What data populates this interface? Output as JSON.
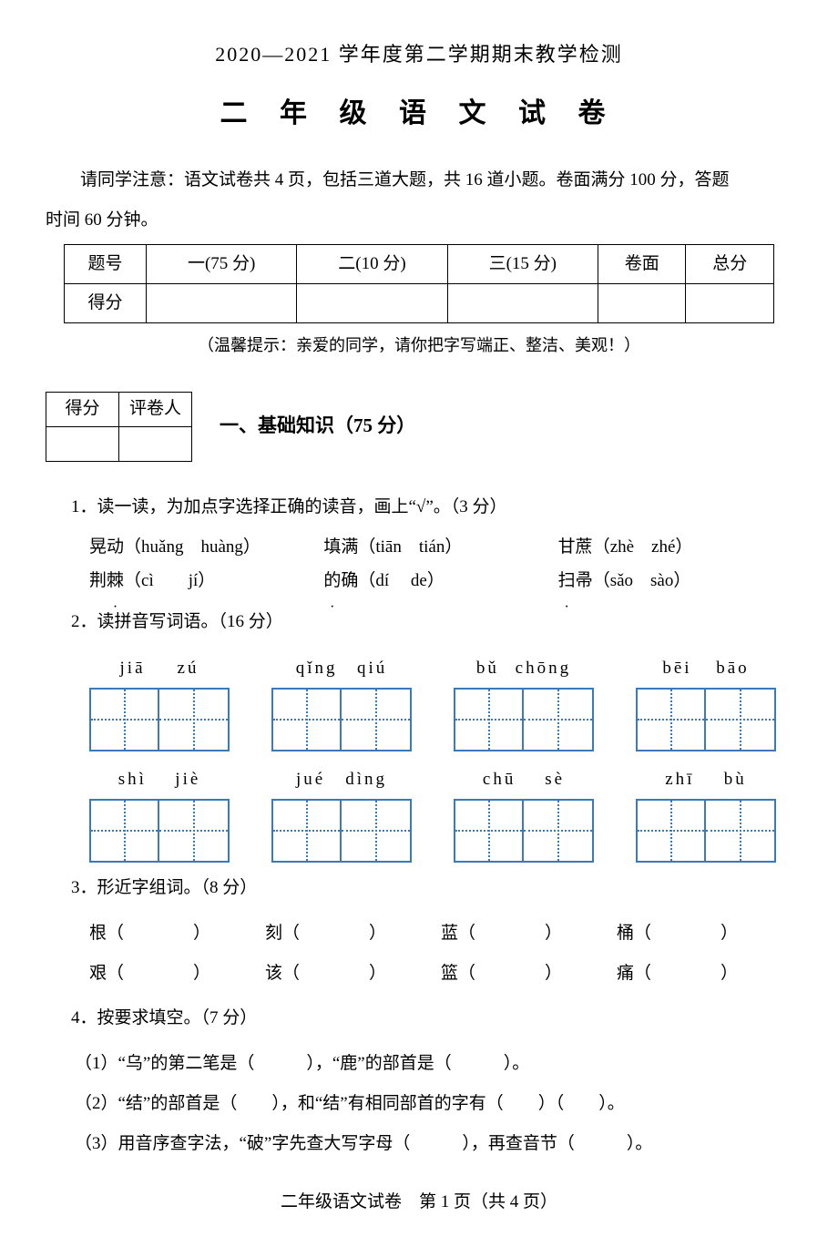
{
  "header": "2020—2021 学年度第二学期期末教学检测",
  "title": "二 年 级 语 文 试 卷",
  "instruction_line1": "请同学注意：语文试卷共 4 页，包括三道大题，共 16 道小题。卷面满分 100 分，答题",
  "instruction_line2": "时间 60 分钟。",
  "score_table": {
    "row1": [
      "题号",
      "一(75 分)",
      "二(10 分)",
      "三(15 分)",
      "卷面",
      "总分"
    ],
    "row2_label": "得分"
  },
  "hint": "（温馨提示：亲爱的同学，请你把字写端正、整洁、美观！）",
  "scorer": {
    "col1": "得分",
    "col2": "评卷人"
  },
  "section1_title": "一、基础知识（75 分）",
  "q1": {
    "stem": "1．读一读，为加点字选择正确的读音，画上“√”。（3 分）",
    "items": [
      {
        "pre": "晃",
        "dot": "动",
        "pinyin": "（huǎng　huàng）"
      },
      {
        "pre": "填",
        "dot": "满",
        "pinyin": "（tiān　tián）"
      },
      {
        "pre": "甘",
        "dot": "蔗",
        "pinyin": "（zhè　zhé）"
      },
      {
        "pre": "荆",
        "dot": "棘",
        "pinyin": "（cì　　jí）"
      },
      {
        "pre": "的",
        "dot": "确",
        "pinyin": "（dí　  de）"
      },
      {
        "pre": "扫",
        "dot": "帚",
        "pinyin": "（sǎo　sào）"
      }
    ]
  },
  "q2": {
    "stem": "2．读拼音写词语。（16 分）",
    "row1": [
      {
        "p1": "jiā",
        "p2": "zú"
      },
      {
        "p1": "qǐng",
        "p2": "qiú"
      },
      {
        "p1": "bǔ",
        "p2": "chōng"
      },
      {
        "p1": "bēi",
        "p2": "bāo"
      }
    ],
    "row2": [
      {
        "p1": "shì",
        "p2": "jiè"
      },
      {
        "p1": "jué",
        "p2": "dìng"
      },
      {
        "p1": "chū",
        "p2": "sè"
      },
      {
        "p1": "zhī",
        "p2": "bù"
      }
    ]
  },
  "q3": {
    "stem": "3．形近字组词。（8 分）",
    "row1": [
      "根（　　　　）",
      "刻（　　　　）",
      "蓝（　　　　）",
      "桶（　　　　）"
    ],
    "row2": [
      "艰（　　　　）",
      "该（　　　　）",
      "篮（　　　　）",
      "痛（　　　　）"
    ]
  },
  "q4": {
    "stem": "4．按要求填空。（7 分）",
    "items": [
      "（1）“乌”的第二笔是（　　　），“鹿”的部首是（　　　）。",
      "（2）“结”的部首是（　　），和“结”有相同部首的字有（　　）（　　）。",
      "（3）用音序查字法，“破”字先查大写字母（　　　），再查音节（　　　）。"
    ]
  },
  "footer": "二年级语文试卷　第 1 页（共 4 页）",
  "colors": {
    "text": "#000000",
    "tianzi_border": "#3a7ab8",
    "background": "#ffffff"
  }
}
